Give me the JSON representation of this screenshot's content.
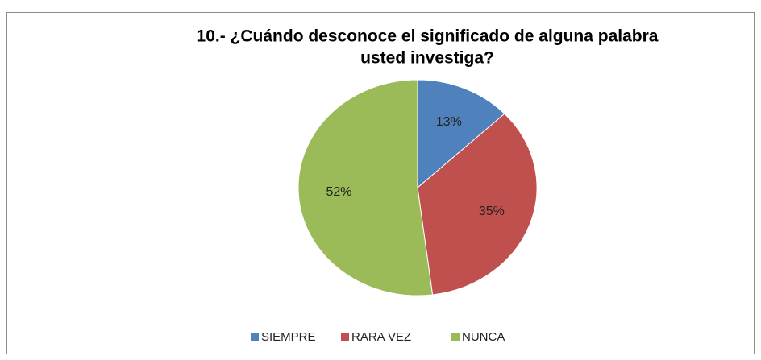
{
  "chart_data": {
    "type": "pie",
    "title": [
      "10.- ¿Cuándo desconoce el significado de alguna palabra",
      "usted investiga?"
    ],
    "categories": [
      "SIEMPRE",
      "RARA VEZ",
      "NUNCA"
    ],
    "values": [
      13,
      35,
      52
    ],
    "value_labels": [
      "13%",
      "35%",
      "52%"
    ],
    "colors": [
      "#4f81bd",
      "#c0504d",
      "#9bbb59"
    ],
    "legend": "bottom"
  }
}
